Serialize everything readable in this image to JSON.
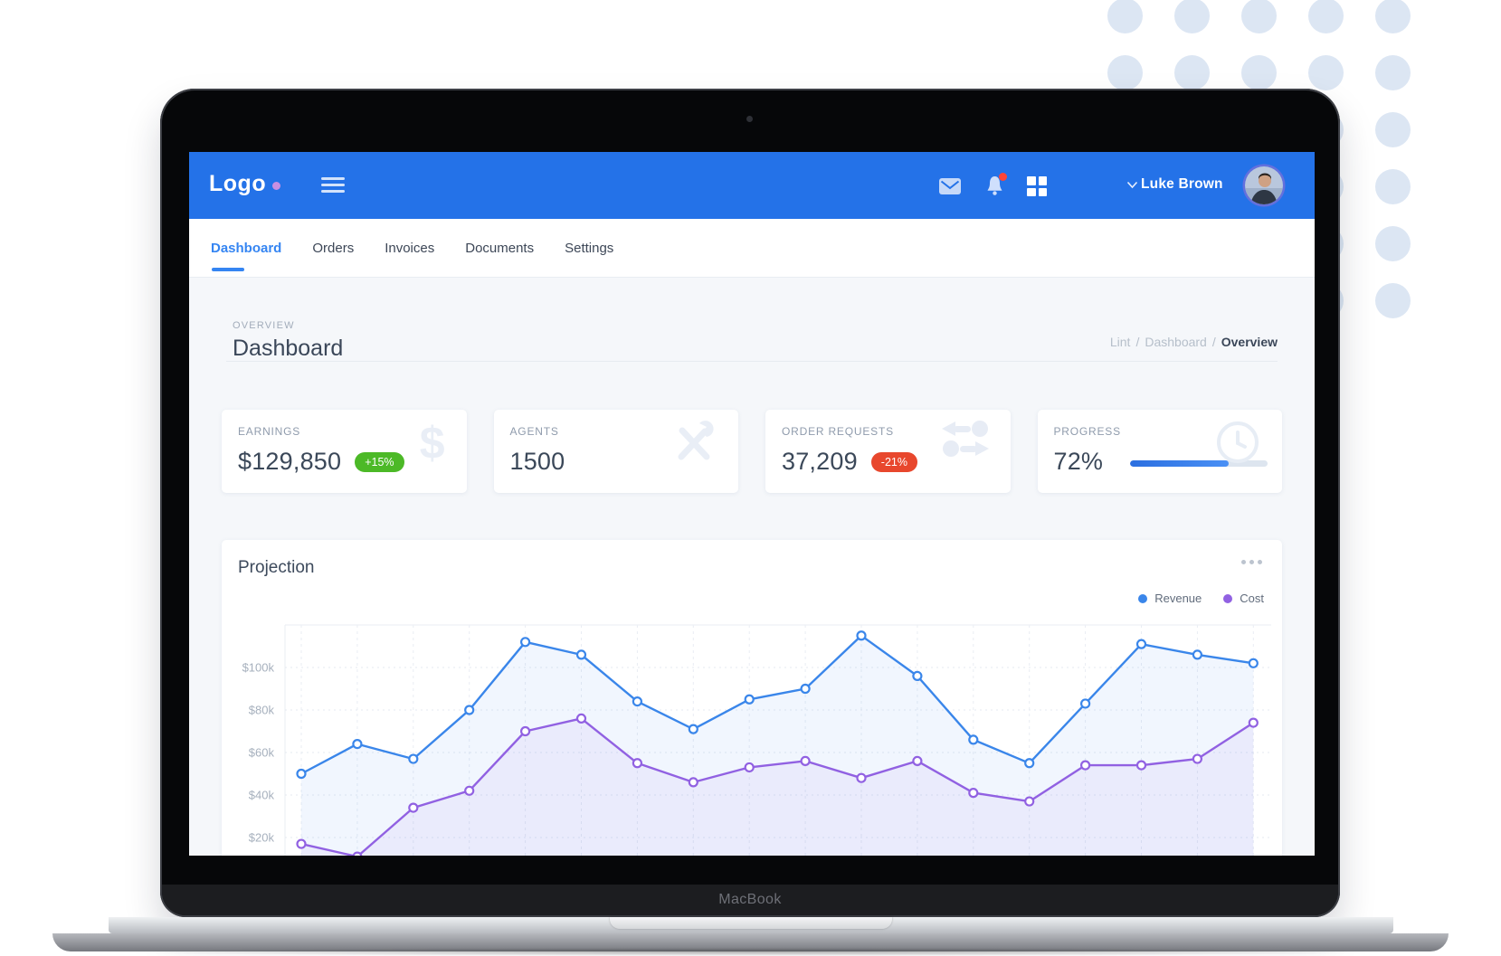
{
  "theme": {
    "header_blue": "#2472e8",
    "accent_blue": "#3585f2",
    "green_badge": "#4cb927",
    "red_badge": "#e8472d",
    "progress_fill": "#4a90f5",
    "logo_dot": "#c98fe2",
    "notification_dot": "#ff4536",
    "dot_pattern": "#dce6f3",
    "revenue_color": "#3a86ea",
    "cost_color": "#9161e2"
  },
  "laptop": {
    "label": "MacBook"
  },
  "header": {
    "logo": "Logo",
    "user_name": "Luke Brown",
    "icons": [
      "mail-icon",
      "bell-icon",
      "apps-grid-icon"
    ],
    "has_notification": true
  },
  "nav": {
    "items": [
      {
        "label": "Dashboard",
        "active": true
      },
      {
        "label": "Orders",
        "active": false
      },
      {
        "label": "Invoices",
        "active": false
      },
      {
        "label": "Documents",
        "active": false
      },
      {
        "label": "Settings",
        "active": false
      }
    ]
  },
  "page": {
    "overline": "OVERVIEW",
    "title": "Dashboard",
    "breadcrumb": {
      "items": [
        "Lint",
        "Dashboard"
      ],
      "current": "Overview",
      "separator": "/"
    }
  },
  "stats": [
    {
      "label": "EARNINGS",
      "value": "$129,850",
      "badge": "+15%",
      "badge_type": "green",
      "icon": "dollar"
    },
    {
      "label": "AGENTS",
      "value": "1500",
      "badge": null,
      "badge_type": null,
      "icon": "tools"
    },
    {
      "label": "ORDER REQUESTS",
      "value": "37,209",
      "badge": "-21%",
      "badge_type": "red",
      "icon": "arrows"
    },
    {
      "label": "PROGRESS",
      "value": "72%",
      "badge": null,
      "badge_type": null,
      "icon": "clock",
      "progress_percent": 72
    }
  ],
  "projection": {
    "title": "Projection"
  },
  "chart_data": {
    "type": "line",
    "title": "Projection",
    "unit": "thousand USD",
    "x_labels_visible": false,
    "points_count": 18,
    "series": [
      {
        "name": "Revenue",
        "color": "#3a86ea",
        "values": [
          50,
          64,
          57,
          80,
          112,
          106,
          84,
          71,
          85,
          90,
          115,
          96,
          66,
          55,
          83,
          111,
          106,
          102
        ]
      },
      {
        "name": "Cost",
        "color": "#9161e2",
        "values": [
          17,
          11,
          34,
          42,
          70,
          76,
          55,
          46,
          53,
          56,
          48,
          56,
          41,
          37,
          54,
          54,
          57,
          74
        ]
      }
    ],
    "y_ticks": [
      {
        "label": "$100k",
        "value": 100
      },
      {
        "label": "$80k",
        "value": 80
      },
      {
        "label": "$60k",
        "value": 60
      },
      {
        "label": "$40k",
        "value": 40
      },
      {
        "label": "$20k",
        "value": 20
      }
    ],
    "ylim": [
      0,
      120
    ],
    "grid": true,
    "legend_position": "top-right",
    "markers": "open-circle",
    "note": "bottom of plot clipped by screen edge"
  }
}
